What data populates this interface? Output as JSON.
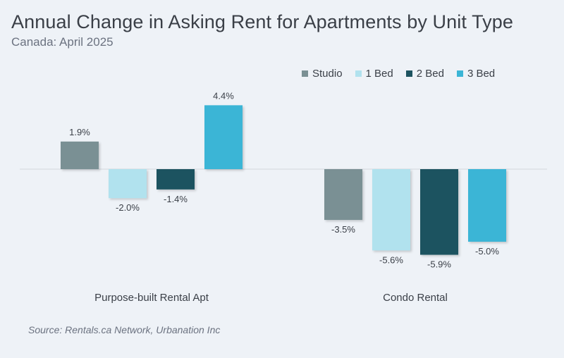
{
  "title": "Annual Change in Asking Rent for Apartments by Unit Type",
  "subtitle": "Canada: April 2025",
  "source": "Source: Rentals.ca Network, Urbanation Inc",
  "chart_data": {
    "type": "bar",
    "categories": [
      "Purpose-built Rental Apt",
      "Condo Rental"
    ],
    "series": [
      {
        "name": "Studio",
        "color": "#7a9094",
        "values": [
          1.9,
          -3.5
        ],
        "labels": [
          "1.9%",
          "-3.5%"
        ]
      },
      {
        "name": "1 Bed",
        "color": "#b1e2ee",
        "values": [
          -2.0,
          -5.6
        ],
        "labels": [
          "-2.0%",
          "-5.6%"
        ]
      },
      {
        "name": "2 Bed",
        "color": "#1d5360",
        "values": [
          -1.4,
          -5.9
        ],
        "labels": [
          "-1.4%",
          "-5.9%"
        ]
      },
      {
        "name": "3 Bed",
        "color": "#3bb5d6",
        "values": [
          4.4,
          -5.0
        ],
        "labels": [
          "4.4%",
          "-5.0%"
        ]
      }
    ],
    "unit": "%",
    "legend": "top-right",
    "grid": false
  }
}
